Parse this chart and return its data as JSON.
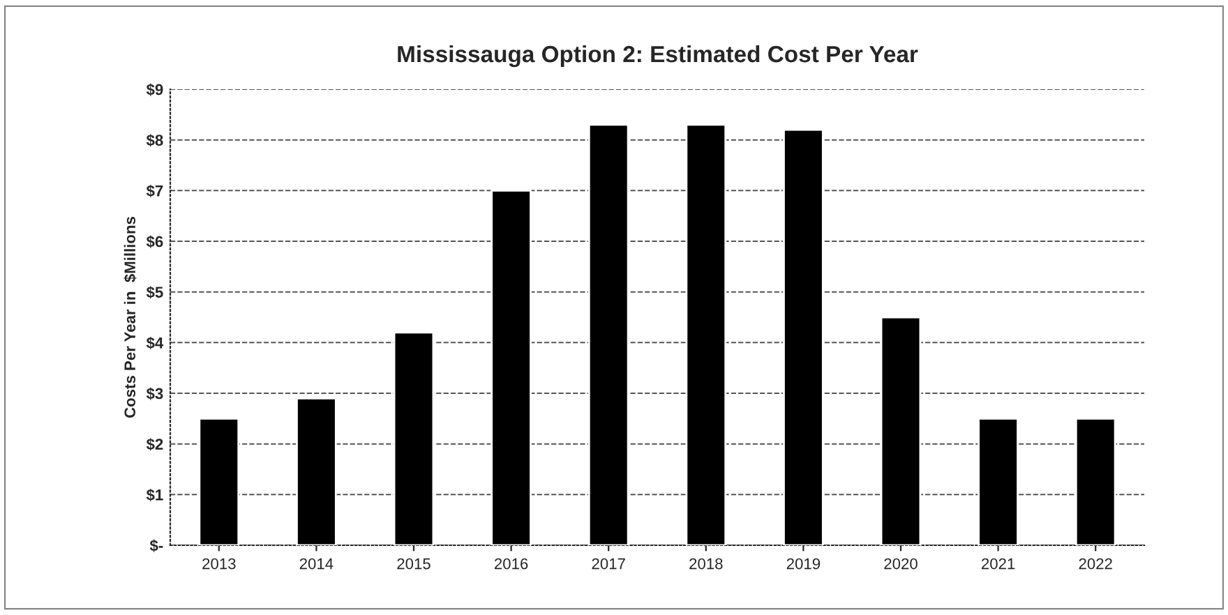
{
  "chart_data": {
    "type": "bar",
    "title": "Mississauga Option 2: Estimated Cost Per Year",
    "ylabel": "Costs Per Year in  $Millions",
    "categories": [
      "2013",
      "2014",
      "2015",
      "2016",
      "2017",
      "2018",
      "2019",
      "2020",
      "2021",
      "2022"
    ],
    "values": [
      2.5,
      2.9,
      4.2,
      7.0,
      8.3,
      8.3,
      8.2,
      4.5,
      2.5,
      2.5
    ],
    "color": "#000000",
    "ylim": [
      0,
      9
    ],
    "yticks": [
      {
        "value": 0,
        "label": "$-"
      },
      {
        "value": 1,
        "label": "$1"
      },
      {
        "value": 2,
        "label": "$2"
      },
      {
        "value": 3,
        "label": "$3"
      },
      {
        "value": 4,
        "label": "$4"
      },
      {
        "value": 5,
        "label": "$5"
      },
      {
        "value": 6,
        "label": "$6"
      },
      {
        "value": 7,
        "label": "$7"
      },
      {
        "value": 8,
        "label": "$8"
      },
      {
        "value": 9,
        "label": "$9"
      }
    ],
    "grid": "y",
    "legend": false
  }
}
